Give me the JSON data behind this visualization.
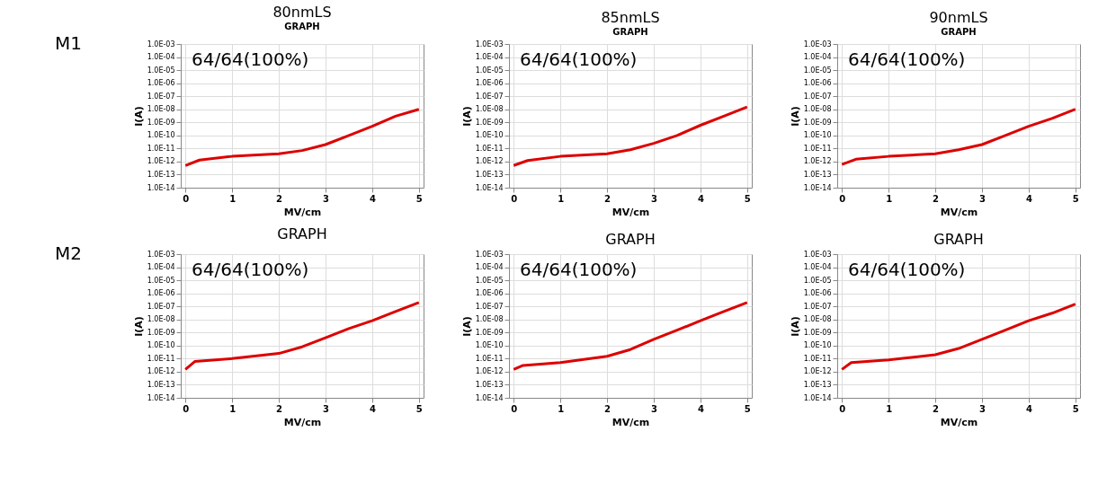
{
  "chart_data": [
    {
      "type": "line",
      "title": "80nmLS",
      "subtitle": "GRAPH",
      "xlabel": "MV/cm",
      "ylabel": "I(A)",
      "annotations": [
        "M1",
        "64/64(100%)"
      ],
      "x": [
        0,
        0.3,
        1,
        2,
        2.5,
        3,
        3.5,
        4,
        4.5,
        5
      ],
      "series": [
        {
          "color": "#dd0000",
          "values": [
            5e-13,
            1.3e-12,
            2.5e-12,
            4e-12,
            7e-12,
            2e-11,
            1e-10,
            5e-10,
            3e-09,
            1e-08
          ]
        }
      ],
      "xlim": [
        -0.1,
        5.1
      ],
      "xticks": [
        0,
        1,
        2,
        3,
        4,
        5
      ],
      "ylim": [
        1e-14,
        0.001
      ],
      "yticks": [
        {
          "value": 1e-14,
          "label": "1.0E-14"
        },
        {
          "value": 1e-13,
          "label": "1.0E-13"
        },
        {
          "value": 1e-12,
          "label": "1.0E-12"
        },
        {
          "value": 1e-11,
          "label": "1.0E-11"
        },
        {
          "value": 1e-10,
          "label": "1.0E-10"
        },
        {
          "value": 1e-09,
          "label": "1.0E-09"
        },
        {
          "value": 1e-08,
          "label": "1.0E-08"
        },
        {
          "value": 1e-07,
          "label": "1.0E-07"
        },
        {
          "value": 1e-06,
          "label": "1.0E-06"
        },
        {
          "value": 1e-05,
          "label": "1.0E-05"
        },
        {
          "value": 0.0001,
          "label": "1.0E-04"
        },
        {
          "value": 0.001,
          "label": "1.0E-03"
        }
      ],
      "log": "y",
      "grid": true,
      "marker": "none",
      "line_style": "solid"
    },
    {
      "type": "line",
      "title": "85nmLS",
      "subtitle": "GRAPH",
      "xlabel": "MV/cm",
      "ylabel": "I(A)",
      "annotations": [
        "64/64(100%)"
      ],
      "x": [
        0,
        0.3,
        1,
        2,
        2.5,
        3,
        3.5,
        4,
        4.5,
        5
      ],
      "series": [
        {
          "color": "#dd0000",
          "values": [
            5e-13,
            1.2e-12,
            2.5e-12,
            4e-12,
            8e-12,
            2.5e-11,
            1e-10,
            6e-10,
            3e-09,
            1.5e-08
          ]
        }
      ],
      "xlim": [
        -0.1,
        5.1
      ],
      "xticks": [
        0,
        1,
        2,
        3,
        4,
        5
      ],
      "ylim": [
        1e-14,
        0.001
      ],
      "yticks": [
        {
          "value": 1e-14,
          "label": "1.0E-14"
        },
        {
          "value": 1e-13,
          "label": "1.0E-13"
        },
        {
          "value": 1e-12,
          "label": "1.0E-12"
        },
        {
          "value": 1e-11,
          "label": "1.0E-11"
        },
        {
          "value": 1e-10,
          "label": "1.0E-10"
        },
        {
          "value": 1e-09,
          "label": "1.0E-09"
        },
        {
          "value": 1e-08,
          "label": "1.0E-08"
        },
        {
          "value": 1e-07,
          "label": "1.0E-07"
        },
        {
          "value": 1e-06,
          "label": "1.0E-06"
        },
        {
          "value": 1e-05,
          "label": "1.0E-05"
        },
        {
          "value": 0.0001,
          "label": "1.0E-04"
        },
        {
          "value": 0.001,
          "label": "1.0E-03"
        }
      ],
      "log": "y",
      "grid": true,
      "marker": "none",
      "line_style": "solid"
    },
    {
      "type": "line",
      "title": "90nmLS",
      "subtitle": "GRAPH",
      "xlabel": "MV/cm",
      "ylabel": "I(A)",
      "annotations": [
        "64/64(100%)"
      ],
      "x": [
        0,
        0.3,
        1,
        2,
        2.5,
        3,
        3.5,
        4,
        4.5,
        5
      ],
      "series": [
        {
          "color": "#dd0000",
          "values": [
            6e-13,
            1.5e-12,
            2.5e-12,
            4e-12,
            8e-12,
            2e-11,
            1e-10,
            5e-10,
            2e-09,
            1e-08
          ]
        }
      ],
      "xlim": [
        -0.1,
        5.1
      ],
      "xticks": [
        0,
        1,
        2,
        3,
        4,
        5
      ],
      "ylim": [
        1e-14,
        0.001
      ],
      "yticks": [
        {
          "value": 1e-14,
          "label": "1.0E-14"
        },
        {
          "value": 1e-13,
          "label": "1.0E-13"
        },
        {
          "value": 1e-12,
          "label": "1.0E-12"
        },
        {
          "value": 1e-11,
          "label": "1.0E-11"
        },
        {
          "value": 1e-10,
          "label": "1.0E-10"
        },
        {
          "value": 1e-09,
          "label": "1.0E-09"
        },
        {
          "value": 1e-08,
          "label": "1.0E-08"
        },
        {
          "value": 1e-07,
          "label": "1.0E-07"
        },
        {
          "value": 1e-06,
          "label": "1.0E-06"
        },
        {
          "value": 1e-05,
          "label": "1.0E-05"
        },
        {
          "value": 0.0001,
          "label": "1.0E-04"
        },
        {
          "value": 0.001,
          "label": "1.0E-03"
        }
      ],
      "log": "y",
      "grid": true,
      "marker": "none",
      "line_style": "solid"
    },
    {
      "type": "line",
      "title": "GRAPH",
      "xlabel": "MV/cm",
      "ylabel": "I(A)",
      "annotations": [
        "M2",
        "64/64(100%)"
      ],
      "x": [
        0,
        0.2,
        1,
        2,
        2.5,
        3,
        3.5,
        4,
        4.5,
        5
      ],
      "series": [
        {
          "color": "#dd0000",
          "values": [
            1.5e-12,
            6e-12,
            1e-11,
            2.5e-11,
            8e-11,
            4e-10,
            2e-09,
            8e-09,
            4e-08,
            2e-07
          ]
        }
      ],
      "xlim": [
        -0.1,
        5.1
      ],
      "xticks": [
        0,
        1,
        2,
        3,
        4,
        5
      ],
      "ylim": [
        1e-14,
        0.001
      ],
      "yticks": [
        {
          "value": 1e-14,
          "label": "1.0E-14"
        },
        {
          "value": 1e-13,
          "label": "1.0E-13"
        },
        {
          "value": 1e-12,
          "label": "1.0E-12"
        },
        {
          "value": 1e-11,
          "label": "1.0E-11"
        },
        {
          "value": 1e-10,
          "label": "1.0E-10"
        },
        {
          "value": 1e-09,
          "label": "1.0E-09"
        },
        {
          "value": 1e-08,
          "label": "1.0E-08"
        },
        {
          "value": 1e-07,
          "label": "1.0E-07"
        },
        {
          "value": 1e-06,
          "label": "1.0E-06"
        },
        {
          "value": 1e-05,
          "label": "1.0E-05"
        },
        {
          "value": 0.0001,
          "label": "1.0E-04"
        },
        {
          "value": 0.001,
          "label": "1.0E-03"
        }
      ],
      "log": "y",
      "grid": true,
      "marker": "none",
      "line_style": "solid"
    },
    {
      "type": "line",
      "title": "GRAPH",
      "xlabel": "MV/cm",
      "ylabel": "I(A)",
      "annotations": [
        "64/64(100%)"
      ],
      "x": [
        0,
        0.2,
        1,
        2,
        2.5,
        3,
        3.5,
        4,
        4.5,
        5
      ],
      "series": [
        {
          "color": "#dd0000",
          "values": [
            1.5e-12,
            3e-12,
            5e-12,
            1.5e-11,
            5e-11,
            3e-10,
            1.5e-09,
            8e-09,
            4e-08,
            2e-07
          ]
        }
      ],
      "xlim": [
        -0.1,
        5.1
      ],
      "xticks": [
        0,
        1,
        2,
        3,
        4,
        5
      ],
      "ylim": [
        1e-14,
        0.001
      ],
      "yticks": [
        {
          "value": 1e-14,
          "label": "1.0E-14"
        },
        {
          "value": 1e-13,
          "label": "1.0E-13"
        },
        {
          "value": 1e-12,
          "label": "1.0E-12"
        },
        {
          "value": 1e-11,
          "label": "1.0E-11"
        },
        {
          "value": 1e-10,
          "label": "1.0E-10"
        },
        {
          "value": 1e-09,
          "label": "1.0E-09"
        },
        {
          "value": 1e-08,
          "label": "1.0E-08"
        },
        {
          "value": 1e-07,
          "label": "1.0E-07"
        },
        {
          "value": 1e-06,
          "label": "1.0E-06"
        },
        {
          "value": 1e-05,
          "label": "1.0E-05"
        },
        {
          "value": 0.0001,
          "label": "1.0E-04"
        },
        {
          "value": 0.001,
          "label": "1.0E-03"
        }
      ],
      "log": "y",
      "grid": true,
      "marker": "none",
      "line_style": "solid"
    },
    {
      "type": "line",
      "title": "GRAPH",
      "xlabel": "MV/cm",
      "ylabel": "I(A)",
      "annotations": [
        "64/64(100%)"
      ],
      "x": [
        0,
        0.2,
        1,
        2,
        2.5,
        3,
        3.5,
        4,
        4.5,
        5
      ],
      "series": [
        {
          "color": "#dd0000",
          "values": [
            1.5e-12,
            5e-12,
            8e-12,
            2e-11,
            6e-11,
            3e-10,
            1.5e-09,
            8e-09,
            3e-08,
            1.5e-07
          ]
        }
      ],
      "xlim": [
        -0.1,
        5.1
      ],
      "xticks": [
        0,
        1,
        2,
        3,
        4,
        5
      ],
      "ylim": [
        1e-14,
        0.001
      ],
      "yticks": [
        {
          "value": 1e-14,
          "label": "1.0E-14"
        },
        {
          "value": 1e-13,
          "label": "1.0E-13"
        },
        {
          "value": 1e-12,
          "label": "1.0E-12"
        },
        {
          "value": 1e-11,
          "label": "1.0E-11"
        },
        {
          "value": 1e-10,
          "label": "1.0E-10"
        },
        {
          "value": 1e-09,
          "label": "1.0E-09"
        },
        {
          "value": 1e-08,
          "label": "1.0E-08"
        },
        {
          "value": 1e-07,
          "label": "1.0E-07"
        },
        {
          "value": 1e-06,
          "label": "1.0E-06"
        },
        {
          "value": 1e-05,
          "label": "1.0E-05"
        },
        {
          "value": 0.0001,
          "label": "1.0E-04"
        },
        {
          "value": 0.001,
          "label": "1.0E-03"
        }
      ],
      "log": "y",
      "grid": true,
      "marker": "none",
      "line_style": "solid"
    }
  ]
}
